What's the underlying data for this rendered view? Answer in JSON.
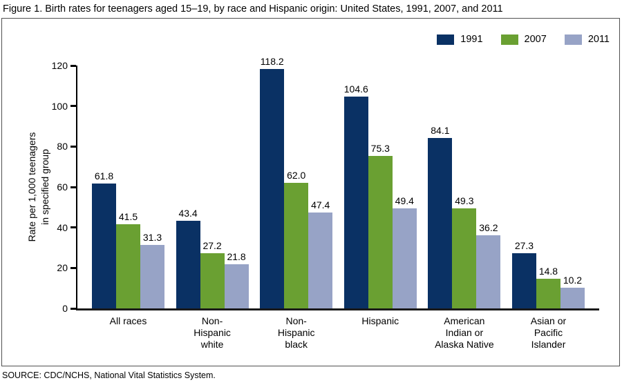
{
  "title": "Figure 1. Birth rates for teenagers aged 15–19, by race and Hispanic origin: United States, 1991, 2007, and 2011",
  "source": "SOURCE: CDC/NCHS, National Vital Statistics System.",
  "chart_data": {
    "type": "bar",
    "title": "Birth rates for teenagers aged 15–19, by race and Hispanic origin: United States, 1991, 2007, and 2011",
    "ylabel": "Rate per 1,000 teenagers in specified group",
    "ylabel_lines": [
      "Rate per 1,000 teenagers",
      "in specified group"
    ],
    "xlabel": "",
    "ylim": [
      0,
      120
    ],
    "yticks": [
      0,
      20,
      40,
      60,
      80,
      100,
      120
    ],
    "grid": false,
    "legend_position": "top-right",
    "categories": [
      "All races",
      "Non-Hispanic white",
      "Non-Hispanic black",
      "Hispanic",
      "American Indian or Alaska Native",
      "Asian or Pacific Islander"
    ],
    "category_lines": [
      [
        "All races"
      ],
      [
        "Non-",
        "Hispanic",
        "white"
      ],
      [
        "Non-",
        "Hispanic",
        "black"
      ],
      [
        "Hispanic"
      ],
      [
        "American",
        "Indian or",
        "Alaska Native"
      ],
      [
        "Asian or",
        "Pacific",
        "Islander"
      ]
    ],
    "series": [
      {
        "name": "1991",
        "color": "#0a3164",
        "values": [
          61.8,
          43.4,
          118.2,
          104.6,
          84.1,
          27.3
        ]
      },
      {
        "name": "2007",
        "color": "#6aa032",
        "values": [
          41.5,
          27.2,
          62.0,
          75.3,
          49.3,
          14.8
        ]
      },
      {
        "name": "2011",
        "color": "#97a3c6",
        "values": [
          31.3,
          21.8,
          47.4,
          49.4,
          36.2,
          10.2
        ]
      }
    ],
    "value_label_decimals": 1
  }
}
